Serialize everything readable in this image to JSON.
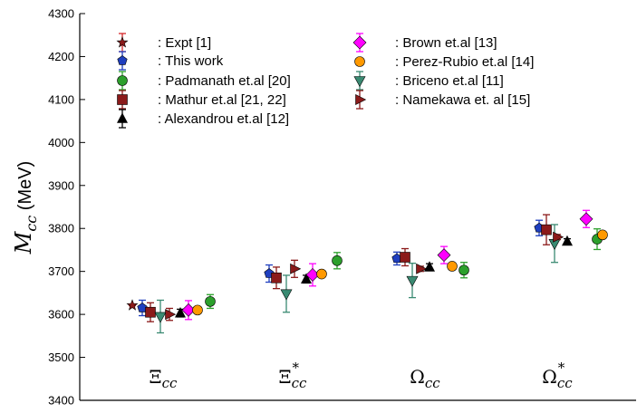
{
  "chart_data": {
    "type": "scatter",
    "title": "",
    "ylabel_symbol": "M",
    "ylabel_subscript": "cc",
    "ylabel_unit": "(MeV)",
    "xlabel": "",
    "ylim": [
      3400,
      4300
    ],
    "yticks": [
      "3400",
      "3500",
      "3600",
      "3700",
      "3800",
      "3900",
      "4000",
      "4100",
      "4200",
      "4300"
    ],
    "grid": false,
    "legend_position": "top-left, two columns",
    "categories": [
      {
        "base": "Ξ",
        "sub": "cc",
        "sup": ""
      },
      {
        "base": "Ξ",
        "sub": "cc",
        "sup": "*"
      },
      {
        "base": "Ω",
        "sub": "cc",
        "sup": ""
      },
      {
        "base": "Ω",
        "sub": "cc",
        "sup": "*"
      }
    ],
    "series": [
      {
        "name": ": Expt [1]",
        "marker": "star",
        "color": "#8b1a1a",
        "err_color": "#d62728",
        "values": [
          3621,
          null,
          null,
          null
        ],
        "errors": [
          1,
          null,
          null,
          null
        ]
      },
      {
        "name": ": This work",
        "marker": "pentagon",
        "color": "#1f3fbf",
        "err_color": "#1f3fbf",
        "values": [
          3615,
          3695,
          3730,
          3801
        ],
        "errors": [
          18,
          20,
          15,
          18
        ]
      },
      {
        "name": ": Padmanath et.al [20]",
        "marker": "circle",
        "color": "#2ca02c",
        "err_color": "#2ca02c",
        "values": [
          3630,
          3725,
          3703,
          3775
        ],
        "errors": [
          16,
          19,
          18,
          24
        ]
      },
      {
        "name": ": Mathur et.al [21, 22]",
        "marker": "square",
        "color": "#8b1a1a",
        "err_color": "#8b1a1a",
        "values": [
          3605,
          3685,
          3733,
          3797
        ],
        "errors": [
          22,
          25,
          20,
          35
        ]
      },
      {
        "name": ": Alexandrou et.al [12]",
        "marker": "triangle-up",
        "color": "#000000",
        "err_color": "#000000",
        "values": [
          3603,
          3682,
          3710,
          3770
        ],
        "errors": [
          9,
          9,
          8,
          6
        ]
      },
      {
        "name": ": Brown et.al [13]",
        "marker": "diamond",
        "color": "#ff00ff",
        "err_color": "#ff00ff",
        "values": [
          3610,
          3692,
          3738,
          3822
        ],
        "errors": [
          22,
          26,
          20,
          20
        ]
      },
      {
        "name": ": Perez-Rubio et.al [14]",
        "marker": "circle",
        "color": "#ff9900",
        "err_color": "#ff9900",
        "values": [
          3610,
          3694,
          3712,
          3785
        ],
        "errors": [
          0,
          0,
          0,
          0
        ]
      },
      {
        "name": ": Briceno et.al [11]",
        "marker": "triangle-down",
        "color": "#3a8a72",
        "err_color": "#3a8a72",
        "values": [
          3595,
          3648,
          3679,
          3765
        ],
        "errors": [
          38,
          43,
          40,
          44
        ]
      },
      {
        "name": ": Namekawa et. al [15]",
        "marker": "triangle-right",
        "color": "#8b1a1a",
        "err_color": "#8b1a1a",
        "values": [
          3600,
          3706,
          3706,
          3780
        ],
        "errors": [
          14,
          20,
          6,
          6
        ]
      }
    ]
  }
}
